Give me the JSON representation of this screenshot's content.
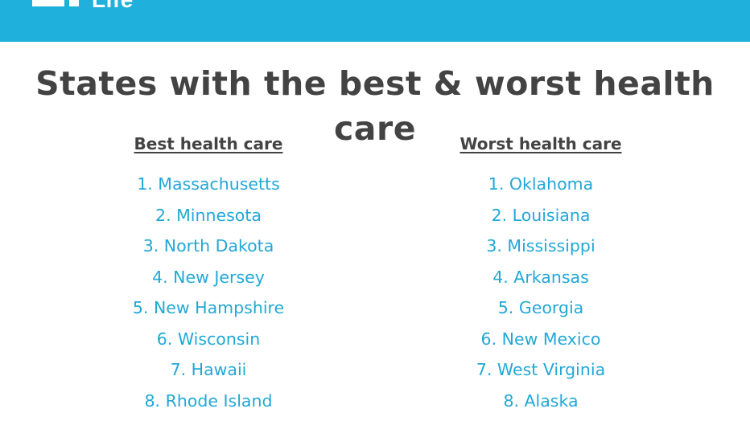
{
  "header": {
    "brand_text": "Life",
    "bar_color": "#1fb0dc"
  },
  "title": "States with the best & worst health care",
  "best": {
    "heading": "Best health care",
    "items": [
      "1. Massachusetts",
      "2. Minnesota",
      "3. North Dakota",
      "4. New Jersey",
      "5. New Hampshire",
      "6. Wisconsin",
      "7. Hawaii",
      "8. Rhode Island"
    ]
  },
  "worst": {
    "heading": "Worst health care",
    "items": [
      "1. Oklahoma",
      "2. Louisiana",
      "3. Mississippi",
      "4. Arkansas",
      "5. Georgia",
      "6. New Mexico",
      "7. West Virginia",
      "8. Alaska"
    ]
  },
  "colors": {
    "heading": "#434343",
    "list_text": "#22a8d6"
  }
}
